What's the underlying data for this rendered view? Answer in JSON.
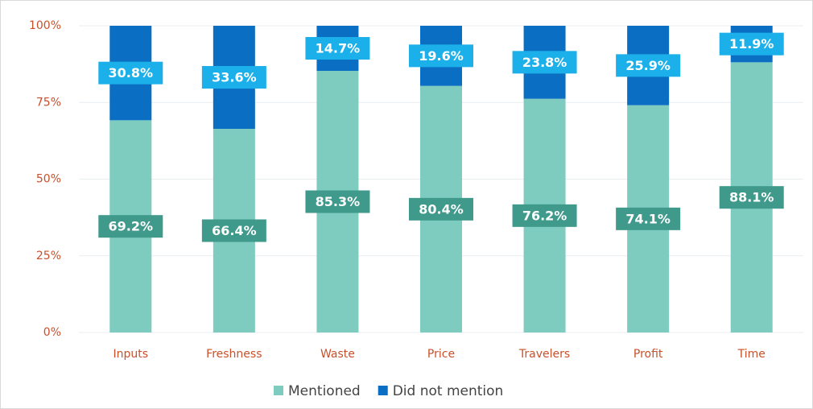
{
  "chart_data": {
    "type": "stacked_bar",
    "categories": [
      "Inputs",
      "Freshness",
      "Waste",
      "Price",
      "Travelers",
      "Profit",
      "Time"
    ],
    "series": [
      {
        "name": "Mentioned",
        "color": "#7ecbbf",
        "label_color": "#3f9a8c",
        "values": [
          69.2,
          66.4,
          85.3,
          80.4,
          76.2,
          74.1,
          88.1
        ],
        "value_labels": [
          "69.2%",
          "66.4%",
          "85.3%",
          "80.4%",
          "76.2%",
          "74.1%",
          "88.1%"
        ]
      },
      {
        "name": "Did not mention",
        "color": "#0a6fc2",
        "label_color": "#1cb0ea",
        "values": [
          30.8,
          33.6,
          14.7,
          19.6,
          23.8,
          25.9,
          11.9
        ],
        "value_labels": [
          "30.8%",
          "33.6%",
          "14.7%",
          "19.6%",
          "23.8%",
          "25.9%",
          "11.9%"
        ]
      }
    ],
    "ylim": [
      0,
      100
    ],
    "yticks": [
      {
        "value": 0,
        "label": "0%"
      },
      {
        "value": 25,
        "label": "25%"
      },
      {
        "value": 50,
        "label": "50%"
      },
      {
        "value": 75,
        "label": "75%"
      },
      {
        "value": 100,
        "label": "100%"
      }
    ],
    "grid": true,
    "legend": "bottom"
  }
}
